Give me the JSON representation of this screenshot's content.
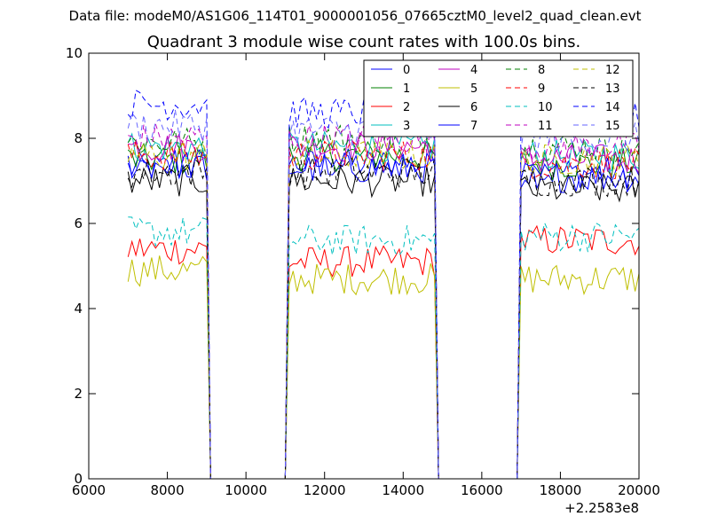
{
  "figure": {
    "suptitle": "Data file: modeM0/AS1G06_114T01_9000001056_07665cztM0_level2_quad_clean.evt"
  },
  "chart_data": {
    "type": "line",
    "title": "Quadrant 3 module wise count rates with 100.0s bins.",
    "xlabel": "",
    "ylabel": "",
    "x_offset_label": "+2.2583e8",
    "xlim": [
      6000,
      20000
    ],
    "ylim": [
      0,
      10
    ],
    "xticks": [
      "6000",
      "8000",
      "10000",
      "12000",
      "14000",
      "16000",
      "18000",
      "20000"
    ],
    "yticks": [
      "0",
      "2",
      "4",
      "6",
      "8",
      "10"
    ],
    "grid": false,
    "legend_position": "top-right",
    "bin_width": 100,
    "data_segments": [
      [
        7000,
        9000
      ],
      [
        11100,
        14800
      ],
      [
        17000,
        20000
      ]
    ],
    "gaps_to_zero": [
      [
        9100,
        11000
      ],
      [
        14900,
        16900
      ]
    ],
    "series": [
      {
        "name": "0",
        "color": "#0000ff",
        "dash": "solid",
        "levels": [
          7.3,
          7.4,
          7.2
        ]
      },
      {
        "name": "1",
        "color": "#008000",
        "dash": "solid",
        "levels": [
          7.5,
          7.6,
          7.4
        ]
      },
      {
        "name": "2",
        "color": "#ff0000",
        "dash": "solid",
        "levels": [
          5.4,
          5.1,
          5.6
        ]
      },
      {
        "name": "3",
        "color": "#00bfbf",
        "dash": "solid",
        "levels": [
          7.8,
          7.8,
          7.6
        ]
      },
      {
        "name": "4",
        "color": "#bf00bf",
        "dash": "solid",
        "levels": [
          7.8,
          7.8,
          7.5
        ]
      },
      {
        "name": "5",
        "color": "#bfbf00",
        "dash": "solid",
        "levels": [
          4.9,
          4.7,
          4.7
        ]
      },
      {
        "name": "6",
        "color": "#000000",
        "dash": "solid",
        "levels": [
          7.0,
          7.0,
          6.8
        ]
      },
      {
        "name": "7",
        "color": "#0000ff",
        "dash": "solid",
        "levels": [
          7.4,
          7.3,
          7.1
        ]
      },
      {
        "name": "8",
        "color": "#008000",
        "dash": "dashed",
        "levels": [
          7.9,
          8.0,
          7.8
        ]
      },
      {
        "name": "9",
        "color": "#ff0000",
        "dash": "dashed",
        "levels": [
          7.6,
          7.6,
          7.4
        ]
      },
      {
        "name": "10",
        "color": "#00bfbf",
        "dash": "dashed",
        "levels": [
          5.8,
          5.6,
          5.7
        ]
      },
      {
        "name": "11",
        "color": "#bf00bf",
        "dash": "dashed",
        "levels": [
          8.0,
          8.0,
          7.8
        ]
      },
      {
        "name": "12",
        "color": "#bfbf00",
        "dash": "dashed",
        "levels": [
          7.6,
          7.6,
          7.5
        ]
      },
      {
        "name": "13",
        "color": "#000000",
        "dash": "dashed",
        "levels": [
          7.2,
          7.2,
          7.0
        ]
      },
      {
        "name": "14",
        "color": "#0000ff",
        "dash": "dashed",
        "levels": [
          8.8,
          8.6,
          8.5
        ]
      },
      {
        "name": "15",
        "color": "#6666ff",
        "dash": "dashed",
        "levels": [
          8.3,
          8.2,
          8.0
        ]
      }
    ]
  }
}
